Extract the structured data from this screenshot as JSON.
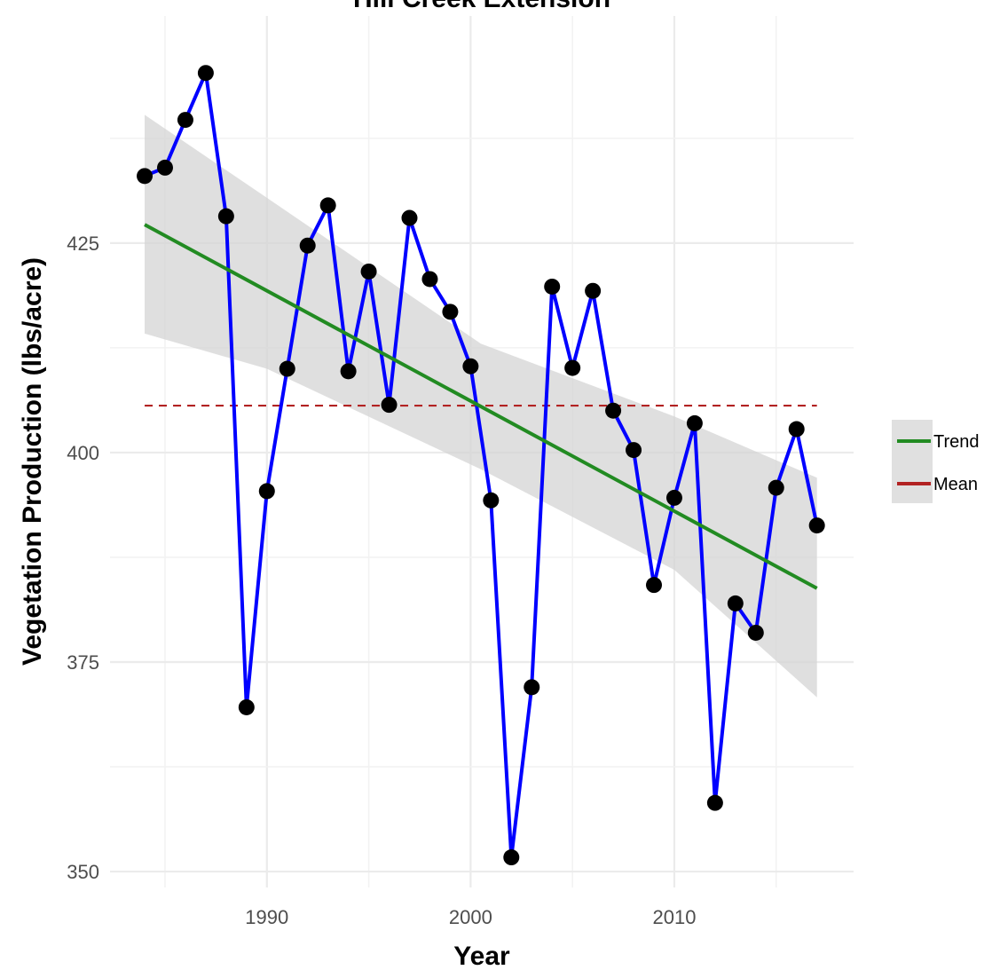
{
  "chart_data": {
    "type": "line",
    "title": "Hill Creek Extension",
    "xlabel": "Year",
    "ylabel": "Vegetation Production (lbs/acre)",
    "xlim": [
      1982.3,
      2018.8
    ],
    "ylim": [
      348.1,
      452.1
    ],
    "x_ticks": [
      1990,
      2000,
      2010
    ],
    "x_tick_labels": [
      "1990",
      "2000",
      "2010"
    ],
    "y_ticks": [
      350,
      375,
      400,
      425
    ],
    "y_tick_labels": [
      "350",
      "375",
      "400",
      "425"
    ],
    "grid": true,
    "legend_position": "right",
    "colors": {
      "series": "#0000ff",
      "points": "#000000",
      "trend": "#228b22",
      "mean": "#b22222",
      "band": "#d3d3d3"
    },
    "series": [
      {
        "x": [
          1984,
          1985,
          1986,
          1987,
          1988,
          1989,
          1990,
          1991,
          1992,
          1993,
          1994,
          1995,
          1996,
          1997,
          1998,
          1999,
          2000,
          2001,
          2002,
          2003,
          2004,
          2005,
          2006,
          2007,
          2008,
          2009,
          2010,
          2011,
          2012,
          2013,
          2014,
          2015,
          2016,
          2017
        ],
        "values": [
          433.0,
          434.0,
          439.7,
          445.3,
          428.2,
          369.6,
          395.4,
          410.0,
          424.7,
          429.5,
          409.7,
          421.6,
          405.7,
          428.0,
          420.7,
          416.8,
          410.3,
          394.3,
          351.7,
          372.0,
          419.8,
          410.1,
          419.3,
          405.0,
          400.3,
          384.2,
          394.6,
          403.5,
          358.2,
          382.0,
          378.5,
          395.8,
          402.8,
          391.3
        ]
      }
    ],
    "trend": {
      "name": "Trend",
      "x": [
        1984,
        2017
      ],
      "values": [
        427.2,
        383.8
      ]
    },
    "mean": {
      "name": "Mean",
      "value": 405.6,
      "x": [
        1984,
        2017
      ]
    },
    "confidence_band": {
      "x": [
        1984,
        1990,
        2000.5,
        2010,
        2017
      ],
      "upper": [
        440.3,
        430.4,
        413.0,
        404.3,
        397.0
      ],
      "lower": [
        414.2,
        410.0,
        398.0,
        386.0,
        370.8
      ]
    },
    "legend": {
      "items": [
        {
          "label": "Trend",
          "color": "#228b22"
        },
        {
          "label": "Mean",
          "color": "#b22222"
        }
      ]
    }
  }
}
